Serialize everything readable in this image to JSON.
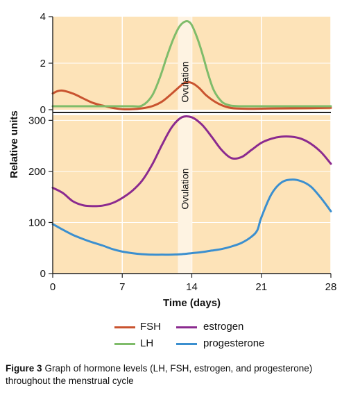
{
  "chart_data": {
    "type": "line",
    "xlabel": "Time (days)",
    "ylabel": "Relative units",
    "x_ticks": [
      0,
      7,
      14,
      21,
      28
    ],
    "xlim": [
      0,
      28
    ],
    "grid": true,
    "background_color": "#fde3b8",
    "ovulation_band": {
      "label": "Ovulation",
      "x_range": [
        12.6,
        14.0
      ],
      "color": "#fef3e2"
    },
    "panels": [
      {
        "name": "top",
        "ylim": [
          0,
          4
        ],
        "y_ticks": [
          0,
          2,
          4
        ],
        "series": [
          {
            "name": "FSH",
            "color": "#c9532f",
            "x": [
              0,
              0.5,
              1,
              2,
              3,
              4,
              5,
              6,
              7,
              8,
              9,
              10,
              11,
              12,
              12.8,
              13.4,
              14,
              14.7,
              15.5,
              16.5,
              17.5,
              18.5,
              20,
              22,
              24,
              26,
              28
            ],
            "y": [
              0.7,
              0.8,
              0.82,
              0.7,
              0.5,
              0.3,
              0.18,
              0.08,
              0.02,
              0.02,
              0.06,
              0.15,
              0.35,
              0.7,
              1.0,
              1.18,
              1.15,
              0.95,
              0.6,
              0.3,
              0.12,
              0.05,
              0.04,
              0.05,
              0.06,
              0.07,
              0.08
            ]
          },
          {
            "name": "LH",
            "color": "#7fbc6a",
            "x": [
              0,
              2,
              4,
              6,
              8,
              9,
              10,
              10.8,
              11.5,
              12.2,
              12.8,
              13.4,
              13.9,
              14.4,
              15,
              15.6,
              16.2,
              17,
              17.7,
              18.3,
              19,
              21,
              24,
              28
            ],
            "y": [
              0.15,
              0.15,
              0.15,
              0.15,
              0.15,
              0.18,
              0.6,
              1.4,
              2.3,
              3.1,
              3.6,
              3.8,
              3.7,
              3.25,
              2.5,
              1.6,
              0.85,
              0.35,
              0.2,
              0.16,
              0.15,
              0.15,
              0.15,
              0.15
            ]
          }
        ]
      },
      {
        "name": "bottom",
        "ylim": [
          0,
          310
        ],
        "y_ticks": [
          0,
          100,
          200,
          300
        ],
        "series": [
          {
            "name": "estrogen",
            "color": "#8b2a8f",
            "x": [
              0,
              1,
              2,
              3,
              4,
              5,
              6,
              7,
              8,
              9,
              10,
              11,
              12,
              13,
              14,
              15,
              16,
              17,
              18,
              19,
              20,
              21,
              22,
              23,
              24,
              25,
              26,
              27,
              28
            ],
            "y": [
              168,
              158,
              142,
              134,
              132,
              133,
              138,
              148,
              162,
              182,
              213,
              252,
              287,
              306,
              306,
              292,
              268,
              242,
              226,
              228,
              242,
              256,
              264,
              268,
              268,
              264,
              254,
              238,
              215
            ]
          },
          {
            "name": "progesterone",
            "color": "#3b8fcf",
            "x": [
              0,
              1,
              2,
              3,
              4,
              5,
              6,
              7,
              8,
              9,
              10,
              11,
              12,
              13,
              14,
              15,
              16,
              17,
              18,
              19,
              20,
              20.6,
              21,
              22,
              23,
              24,
              25,
              26,
              27,
              28
            ],
            "y": [
              97,
              86,
              76,
              68,
              61,
              55,
              48,
              43,
              40,
              38,
              37,
              37,
              37,
              38,
              40,
              42,
              45,
              48,
              53,
              60,
              72,
              85,
              110,
              155,
              178,
              184,
              181,
              170,
              148,
              122
            ]
          }
        ]
      }
    ]
  },
  "legend": {
    "items": [
      {
        "label": "FSH",
        "color": "#c9532f"
      },
      {
        "label": "estrogen",
        "color": "#8b2a8f"
      },
      {
        "label": "LH",
        "color": "#7fbc6a"
      },
      {
        "label": "progesterone",
        "color": "#3b8fcf"
      }
    ]
  },
  "caption": {
    "figure_label": "Figure 3",
    "text": "Graph of hormone levels (LH, FSH, estrogen, and progesterone) throughout the menstrual cycle"
  }
}
